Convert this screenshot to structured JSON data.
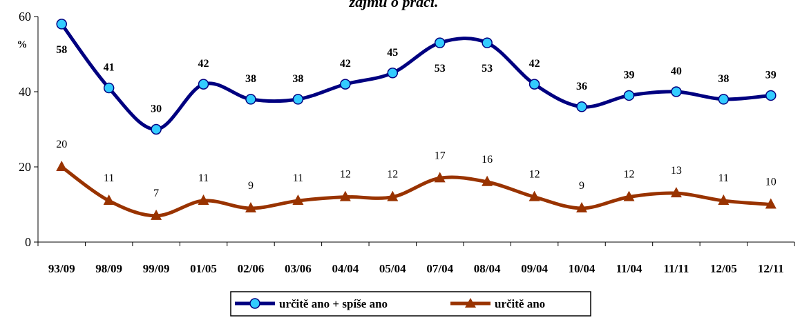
{
  "chart_data": {
    "type": "line",
    "title": "zajmu o práci.",
    "ylabel": "%",
    "xlabel": "",
    "ylim": [
      0,
      60
    ],
    "yticks": [
      "0",
      "20",
      "40",
      "60"
    ],
    "categories": [
      "93/09",
      "98/09",
      "99/09",
      "01/05",
      "02/06",
      "03/06",
      "04/04",
      "05/04",
      "07/04",
      "08/04",
      "09/04",
      "10/04",
      "11/04",
      "11/11",
      "12/05",
      "12/11"
    ],
    "series": [
      {
        "name": "určitě ano + spíše ano",
        "values": [
          58,
          41,
          30,
          42,
          38,
          38,
          42,
          45,
          53,
          53,
          42,
          36,
          39,
          40,
          38,
          39
        ],
        "labels": [
          "58",
          "41",
          "30",
          "42",
          "38",
          "38",
          "42",
          "45",
          "53",
          "53",
          "42",
          "36",
          "39",
          "40",
          "38",
          "39"
        ],
        "color": "#000080",
        "marker_color": "#33ccff",
        "marker": "circle"
      },
      {
        "name": "určitě ano",
        "values": [
          20,
          11,
          7,
          11,
          9,
          11,
          12,
          12,
          17,
          16,
          12,
          9,
          12,
          13,
          11,
          10
        ],
        "labels": [
          "20",
          "11",
          "7",
          "11",
          "9",
          "11",
          "12",
          "12",
          "17",
          "16",
          "12",
          "9",
          "12",
          "13",
          "11",
          "10"
        ],
        "color": "#993300",
        "marker_color": "#993300",
        "marker": "triangle"
      }
    ],
    "grid": false,
    "legend_position": "bottom"
  }
}
